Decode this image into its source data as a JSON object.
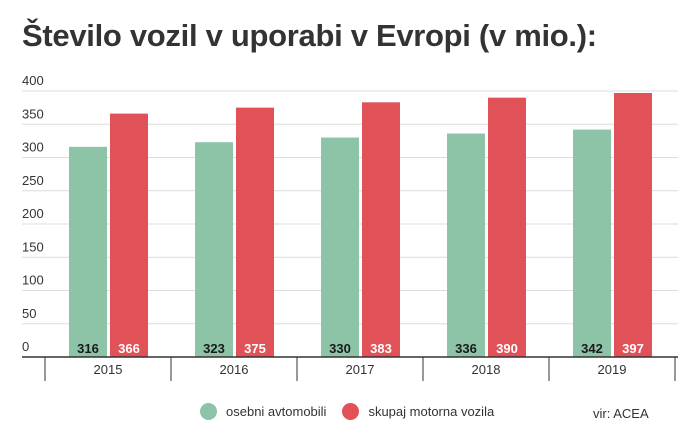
{
  "chart_data": {
    "type": "bar",
    "title": "Število vozil v uporabi v Evropi (v mio.):",
    "categories": [
      "2015",
      "2016",
      "2017",
      "2018",
      "2019"
    ],
    "series": [
      {
        "name": "osebni avtomobili",
        "color": "#8dc3a7",
        "values": [
          316,
          323,
          330,
          336,
          342
        ]
      },
      {
        "name": "skupaj motorna vozila",
        "color": "#e05258",
        "values": [
          366,
          375,
          383,
          390,
          397
        ]
      }
    ],
    "yticks": [
      "0",
      "50",
      "100",
      "150",
      "200",
      "250",
      "300",
      "350",
      "400"
    ],
    "ylim": [
      0,
      400
    ],
    "grid": true,
    "legend": "bottom",
    "source": "vir: ACEA"
  }
}
